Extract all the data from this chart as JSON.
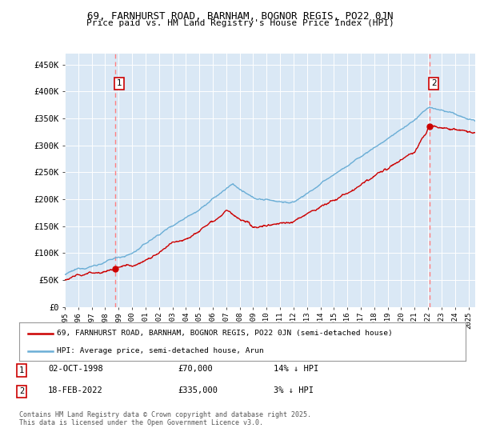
{
  "title_line1": "69, FARNHURST ROAD, BARNHAM, BOGNOR REGIS, PO22 0JN",
  "title_line2": "Price paid vs. HM Land Registry's House Price Index (HPI)",
  "ylabel_ticks": [
    "£0",
    "£50K",
    "£100K",
    "£150K",
    "£200K",
    "£250K",
    "£300K",
    "£350K",
    "£400K",
    "£450K"
  ],
  "ytick_values": [
    0,
    50000,
    100000,
    150000,
    200000,
    250000,
    300000,
    350000,
    400000,
    450000
  ],
  "ylim": [
    0,
    470000
  ],
  "xlim_start": 1995.0,
  "xlim_end": 2025.5,
  "hpi_color": "#6BAED6",
  "price_color": "#CC0000",
  "marker_color": "#CC0000",
  "vline_color": "#FF8080",
  "background_color": "#DAE8F5",
  "sale1_year": 1998.75,
  "sale1_price": 70000,
  "sale2_year": 2022.12,
  "sale2_price": 335000,
  "legend_line1": "69, FARNHURST ROAD, BARNHAM, BOGNOR REGIS, PO22 0JN (semi-detached house)",
  "legend_line2": "HPI: Average price, semi-detached house, Arun",
  "note1_date": "02-OCT-1998",
  "note1_price": "£70,000",
  "note1_hpi": "14% ↓ HPI",
  "note2_date": "18-FEB-2022",
  "note2_price": "£335,000",
  "note2_hpi": "3% ↓ HPI",
  "footer": "Contains HM Land Registry data © Crown copyright and database right 2025.\nThis data is licensed under the Open Government Licence v3.0."
}
